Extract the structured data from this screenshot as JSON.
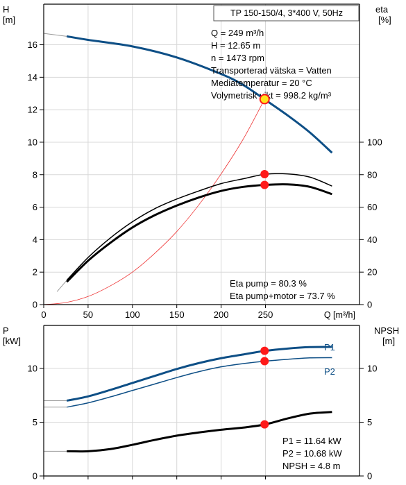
{
  "colors": {
    "head_curve": "#0e4f86",
    "efficiency_curve": "#000000",
    "system_curve": "#ee3333",
    "power_curve": "#0e4f86",
    "npsh_curve": "#000000",
    "duty_point": "#ff1a1a",
    "head_point_fill": "#ffe21a",
    "grid": "#d8d8d8"
  },
  "top_chart": {
    "left_axis_title": "H",
    "left_axis_unit": "[m]",
    "right_axis_title": "eta",
    "right_axis_unit": "[%]",
    "x_axis_label": "Q [m³/h]",
    "info_box_title": "TP 150-150/4, 3*400 V, 50Hz",
    "info_lines": [
      "Q = 249 m³/h",
      "H = 12.65 m",
      "n = 1473 rpm",
      "Transporterad vätska = Vatten",
      "Mediatemperatur = 20 °C",
      "Volymetrisk vikt = 998.2 kg/m³"
    ],
    "eta_lines": [
      "Eta pump = 80.3 %",
      "Eta pump+motor = 73.7 %"
    ]
  },
  "bottom_chart": {
    "left_axis_title": "P",
    "left_axis_unit": "[kW]",
    "right_axis_title": "NPSH",
    "right_axis_unit": "[m]",
    "series_labels": [
      "P1",
      "P2"
    ],
    "result_lines": [
      "P1 = 11.64 kW",
      "P2 = 10.68 kW",
      "NPSH = 4.8 m"
    ]
  },
  "chart_data": [
    {
      "type": "line",
      "xlabel": "Q [m³/h]",
      "ylabel": "H [m]",
      "y2label": "eta [%]",
      "xlim": [
        0,
        356
      ],
      "ylim": [
        0,
        18.5
      ],
      "y2lim": [
        0,
        185
      ],
      "x_ticks": [
        0,
        50,
        100,
        150,
        200,
        250
      ],
      "y_ticks": [
        0,
        2,
        4,
        6,
        8,
        10,
        12,
        14,
        16
      ],
      "y2_ticks": [
        0,
        20,
        40,
        60,
        80,
        100
      ],
      "grid": true,
      "series": [
        {
          "axis": "left",
          "role": "head",
          "width": 3,
          "x": [
            0,
            26,
            50,
            100,
            150,
            200,
            225,
            250,
            275,
            300,
            325
          ],
          "y": [
            16.7,
            16.52,
            16.3,
            15.9,
            15.22,
            14.2,
            13.52,
            12.6,
            11.65,
            10.6,
            9.35
          ],
          "extension_to": 26
        },
        {
          "axis": "left",
          "role": "system_curve",
          "width": 0.8,
          "x": [
            0,
            25,
            50,
            75,
            100,
            125,
            150,
            175,
            200,
            225,
            249
          ],
          "y": [
            0,
            0.13,
            0.5,
            1.15,
            2.0,
            3.15,
            4.5,
            6.15,
            8.05,
            10.2,
            12.65
          ]
        },
        {
          "axis": "right",
          "role": "eta_pump",
          "width": 1.5,
          "x": [
            26,
            50,
            75,
            100,
            125,
            150,
            175,
            200,
            225,
            250,
            275,
            300,
            325
          ],
          "y": [
            15,
            29,
            41,
            51,
            59,
            65,
            70,
            74.5,
            77.5,
            80.3,
            80.5,
            78.5,
            73
          ],
          "extension_from": 15,
          "extension_y": 8
        },
        {
          "axis": "right",
          "role": "eta_pump_motor",
          "width": 3,
          "x": [
            26,
            50,
            75,
            100,
            125,
            150,
            175,
            200,
            225,
            250,
            275,
            300,
            325
          ],
          "y": [
            14,
            27,
            38,
            47.5,
            55,
            61,
            66,
            70,
            72.5,
            73.7,
            74,
            72.5,
            68
          ]
        }
      ],
      "duty_points": [
        {
          "axis": "left",
          "x": 249,
          "y": 12.65,
          "kind": "head"
        },
        {
          "axis": "right",
          "x": 249,
          "y": 80.3,
          "kind": "eta"
        },
        {
          "axis": "right",
          "x": 249,
          "y": 73.7,
          "kind": "eta"
        }
      ]
    },
    {
      "type": "line",
      "ylabel": "P [kW]",
      "y2label": "NPSH [m]",
      "xlim": [
        0,
        356
      ],
      "ylim": [
        0,
        14
      ],
      "y2lim": [
        0,
        14
      ],
      "y_ticks": [
        0,
        5,
        10
      ],
      "y2_ticks": [
        0,
        5,
        10
      ],
      "grid": true,
      "series": [
        {
          "name": "P1",
          "axis": "left",
          "role": "p1",
          "width": 3,
          "x": [
            26,
            50,
            75,
            100,
            125,
            150,
            175,
            200,
            225,
            250,
            275,
            300,
            325
          ],
          "y": [
            7.0,
            7.4,
            8.0,
            8.65,
            9.3,
            9.95,
            10.5,
            10.95,
            11.3,
            11.64,
            11.85,
            11.98,
            12.0
          ],
          "extension_to": 26,
          "extension_y": 7.0
        },
        {
          "name": "P2",
          "axis": "left",
          "role": "p2",
          "width": 1.5,
          "x": [
            26,
            50,
            75,
            100,
            125,
            150,
            175,
            200,
            225,
            250,
            275,
            300,
            325
          ],
          "y": [
            6.4,
            6.8,
            7.35,
            7.95,
            8.55,
            9.15,
            9.7,
            10.15,
            10.45,
            10.68,
            10.85,
            10.98,
            11.0
          ],
          "extension_to": 26,
          "extension_y": 6.4
        },
        {
          "axis": "right",
          "role": "npsh",
          "width": 3,
          "x": [
            26,
            50,
            75,
            100,
            125,
            150,
            175,
            200,
            225,
            250,
            275,
            300,
            325
          ],
          "y": [
            2.3,
            2.3,
            2.5,
            2.9,
            3.35,
            3.75,
            4.05,
            4.3,
            4.5,
            4.8,
            5.35,
            5.8,
            5.95
          ],
          "extension_to": 26,
          "extension_y": 2.3
        }
      ],
      "duty_points": [
        {
          "axis": "left",
          "x": 249,
          "y": 11.64
        },
        {
          "axis": "left",
          "x": 249,
          "y": 10.68
        },
        {
          "axis": "right",
          "x": 249,
          "y": 4.8
        }
      ]
    }
  ]
}
